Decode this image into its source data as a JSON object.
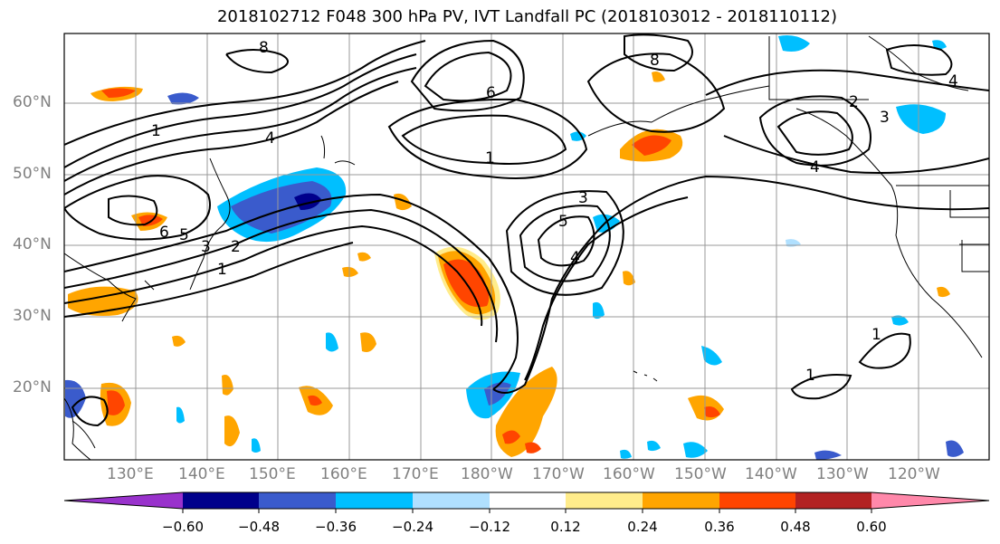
{
  "title": "2018102712 F048 300 hPa PV, IVT Landfall PC (2018103012 - 2018110112)",
  "lat_labels": [
    "60°N",
    "50°N",
    "40°N",
    "30°N",
    "20°N"
  ],
  "lon_labels": [
    "130°E",
    "140°E",
    "150°E",
    "160°E",
    "170°E",
    "180°W",
    "170°W",
    "160°W",
    "150°W",
    "140°W",
    "130°W",
    "120°W"
  ],
  "colorbar": {
    "ticks": [
      "−0.60",
      "−0.48",
      "−0.36",
      "−0.24",
      "−0.12",
      "0.12",
      "0.24",
      "0.36",
      "0.48",
      "0.60"
    ],
    "colors": [
      "#9932cc",
      "#00008b",
      "#3a5bcc",
      "#00bfff",
      "#b0e0ff",
      "#ffffff",
      "#ffec8b",
      "#ffa500",
      "#ff4500",
      "#b22222",
      "#ff88aa"
    ]
  },
  "contour_labels": [
    "1",
    "1",
    "1",
    "1",
    "1",
    "2",
    "2",
    "3",
    "3",
    "3",
    "4",
    "4",
    "4",
    "4",
    "5",
    "5",
    "6",
    "6",
    "8",
    "8"
  ]
}
